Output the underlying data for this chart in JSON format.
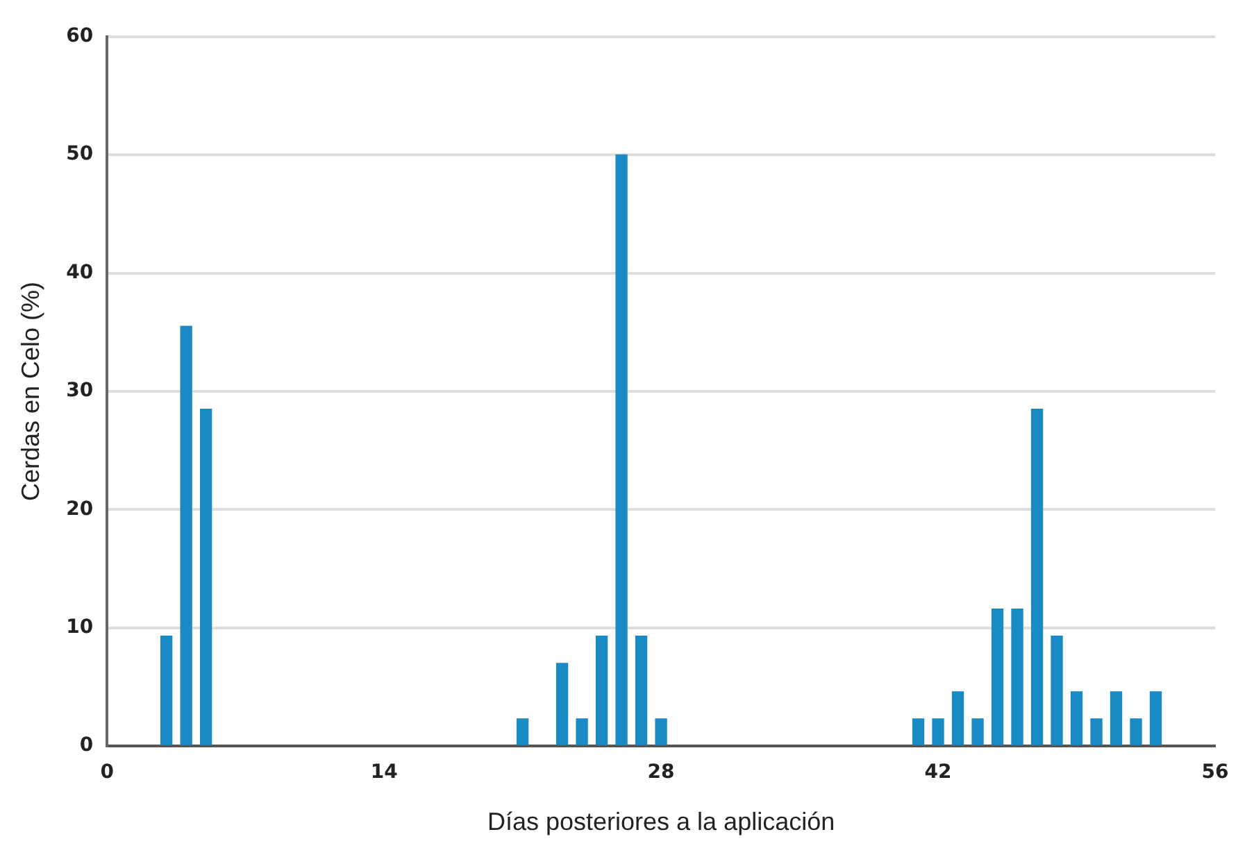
{
  "chart_data": {
    "type": "bar",
    "xlabel": "Días posteriores a la aplicación",
    "ylabel": "Cerdas en Celo (%)",
    "x": [
      3,
      4,
      5,
      21,
      23,
      24,
      25,
      26,
      27,
      28,
      41,
      42,
      43,
      44,
      45,
      46,
      47,
      48,
      49,
      50,
      51,
      52,
      53
    ],
    "values": [
      9.3,
      35.5,
      28.5,
      2.3,
      7,
      2.3,
      9.3,
      50,
      9.3,
      2.3,
      2.3,
      2.3,
      4.6,
      2.3,
      11.6,
      11.6,
      28.5,
      9.3,
      4.6,
      2.3,
      4.6,
      2.3,
      4.6
    ],
    "color": "#1a8ac4",
    "xlim": [
      0,
      56
    ],
    "xticks": [
      0,
      14,
      28,
      42,
      56
    ],
    "ylim": [
      0,
      60
    ],
    "yticks": [
      0,
      10,
      20,
      30,
      40,
      50,
      60
    ],
    "grid": "y"
  }
}
